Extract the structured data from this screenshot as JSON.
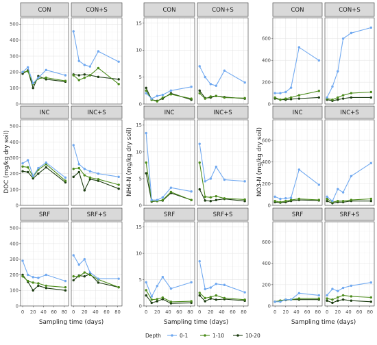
{
  "colors": {
    "d0_1": "#6fa8f0",
    "d1_10": "#4c8c1c",
    "d10_20": "#1d3d12"
  },
  "depth_keys": [
    "d0_1",
    "d1_10",
    "d10_20"
  ],
  "legend": {
    "title": "Depth",
    "items": [
      {
        "key": "d0_1",
        "label": "0-1"
      },
      {
        "key": "d1_10",
        "label": "1-10"
      },
      {
        "key": "d10_20",
        "label": "10-20"
      }
    ]
  },
  "chart_data": [
    {
      "type": "line",
      "ylabel": "DOC (mg/kg dry soil)",
      "xlabel": "Sampling time (days)",
      "ylim": [
        0,
        540
      ],
      "yticks": [
        0,
        100,
        200,
        300,
        400,
        500
      ],
      "xlim": [
        -4,
        88
      ],
      "xticks": [
        0,
        20,
        40,
        60,
        80
      ],
      "panels": [
        {
          "label": "CON",
          "x": [
            0,
            10,
            20,
            30,
            45,
            82
          ],
          "series": {
            "d0_1": [
              200,
              230,
              130,
              165,
              213,
              180
            ],
            "d1_10": [
              200,
              205,
              125,
              160,
              165,
              145
            ],
            "d10_20": [
              190,
              210,
              100,
              175,
              155,
              140
            ]
          }
        },
        {
          "label": "CON+S",
          "x": [
            0,
            10,
            20,
            30,
            45,
            82
          ],
          "series": {
            "d0_1": [
              455,
              270,
              245,
              235,
              330,
              265
            ],
            "d1_10": [
              180,
              150,
              165,
              180,
              225,
              125
            ],
            "d10_20": [
              185,
              180,
              185,
              180,
              170,
              155
            ]
          }
        },
        {
          "label": "INC",
          "x": [
            0,
            10,
            20,
            30,
            45,
            82
          ],
          "series": {
            "d0_1": [
              265,
              285,
              185,
              235,
              270,
              175
            ],
            "d1_10": [
              245,
              240,
              180,
              225,
              260,
              155
            ],
            "d10_20": [
              215,
              210,
              170,
              200,
              240,
              145
            ]
          }
        },
        {
          "label": "INC+S",
          "x": [
            0,
            10,
            20,
            30,
            45,
            82
          ],
          "series": {
            "d0_1": [
              380,
              260,
              230,
              215,
              200,
              180
            ],
            "d1_10": [
              230,
              235,
              190,
              175,
              165,
              130
            ],
            "d10_20": [
              180,
              210,
              95,
              165,
              155,
              105
            ]
          }
        },
        {
          "label": "SRF",
          "x": [
            0,
            10,
            20,
            30,
            45,
            82
          ],
          "series": {
            "d0_1": [
              290,
              200,
              185,
              180,
              200,
              160
            ],
            "d1_10": [
              190,
              160,
              150,
              145,
              130,
              120
            ],
            "d10_20": [
              200,
              155,
              100,
              130,
              115,
              100
            ]
          }
        },
        {
          "label": "SRF+S",
          "x": [
            0,
            10,
            20,
            30,
            45,
            82
          ],
          "series": {
            "d0_1": [
              325,
              265,
              300,
              215,
              175,
              175
            ],
            "d1_10": [
              190,
              190,
              215,
              200,
              170,
              120
            ],
            "d10_20": [
              165,
              195,
              190,
              205,
              150,
              120
            ]
          }
        }
      ]
    },
    {
      "type": "line",
      "ylabel": "NH4-N (mg/kg dry soil)",
      "xlabel": "Sampling time (days)",
      "ylim": [
        0,
        16
      ],
      "yticks": [
        0,
        5,
        10,
        15
      ],
      "xlim": [
        -4,
        88
      ],
      "xticks": [
        0,
        20,
        40,
        60,
        80
      ],
      "panels": [
        {
          "label": "CON",
          "x": [
            0,
            10,
            20,
            30,
            45,
            82
          ],
          "series": {
            "d0_1": [
              2.0,
              1.0,
              1.5,
              1.7,
              2.5,
              3.2
            ],
            "d1_10": [
              2.5,
              0.8,
              0.5,
              1.2,
              1.8,
              1.0
            ],
            "d10_20": [
              3.0,
              0.8,
              0.6,
              1.0,
              2.0,
              0.8
            ]
          }
        },
        {
          "label": "CON+S",
          "x": [
            0,
            10,
            20,
            30,
            45,
            82
          ],
          "series": {
            "d0_1": [
              7.0,
              5.0,
              3.7,
              3.4,
              6.2,
              4.0
            ],
            "d1_10": [
              2.0,
              1.0,
              1.4,
              1.5,
              1.2,
              1.1
            ],
            "d10_20": [
              2.5,
              1.1,
              1.2,
              1.5,
              1.3,
              1.0
            ]
          }
        },
        {
          "label": "INC",
          "x": [
            0,
            10,
            20,
            30,
            45,
            82
          ],
          "series": {
            "d0_1": [
              13.5,
              1.0,
              1.0,
              1.5,
              3.3,
              2.6
            ],
            "d1_10": [
              8.0,
              0.8,
              0.8,
              1.0,
              2.5,
              1.0
            ],
            "d10_20": [
              6.0,
              0.7,
              0.8,
              0.9,
              2.3,
              1.0
            ]
          }
        },
        {
          "label": "INC+S",
          "x": [
            0,
            10,
            20,
            30,
            45,
            82
          ],
          "series": {
            "d0_1": [
              11.5,
              4.5,
              5.0,
              7.2,
              4.8,
              4.5
            ],
            "d1_10": [
              8.0,
              1.6,
              1.5,
              1.7,
              1.3,
              1.1
            ],
            "d10_20": [
              3.0,
              0.9,
              0.8,
              1.0,
              1.2,
              0.8
            ]
          }
        },
        {
          "label": "SRF",
          "x": [
            0,
            10,
            20,
            30,
            45,
            82
          ],
          "series": {
            "d0_1": [
              4.5,
              1.8,
              3.8,
              5.5,
              3.3,
              4.5
            ],
            "d1_10": [
              3.0,
              1.2,
              1.3,
              1.6,
              0.8,
              0.9
            ],
            "d10_20": [
              2.0,
              0.6,
              0.9,
              1.3,
              0.5,
              0.6
            ]
          }
        },
        {
          "label": "SRF+S",
          "x": [
            0,
            10,
            20,
            30,
            45,
            82
          ],
          "series": {
            "d0_1": [
              8.5,
              3.2,
              3.5,
              4.2,
              4.0,
              2.6
            ],
            "d1_10": [
              2.5,
              1.5,
              1.7,
              2.0,
              1.5,
              1.2
            ],
            "d10_20": [
              2.0,
              0.9,
              1.4,
              1.2,
              1.3,
              1.0
            ]
          }
        }
      ]
    },
    {
      "type": "line",
      "ylabel": "NO3-N (mg/kg dry soil)",
      "xlabel": "Sampling time (days)",
      "ylim": [
        0,
        790
      ],
      "yticks": [
        0,
        200,
        400,
        600
      ],
      "xlim": [
        -4,
        88
      ],
      "xticks": [
        0,
        20,
        40,
        60,
        80
      ],
      "panels": [
        {
          "label": "CON",
          "x": [
            0,
            10,
            20,
            30,
            45,
            82
          ],
          "series": {
            "d0_1": [
              100,
              100,
              110,
              150,
              520,
              400
            ],
            "d1_10": [
              60,
              40,
              50,
              60,
              80,
              120
            ],
            "d10_20": [
              50,
              40,
              40,
              45,
              50,
              60
            ]
          }
        },
        {
          "label": "CON+S",
          "x": [
            0,
            10,
            20,
            30,
            45,
            82
          ],
          "series": {
            "d0_1": [
              60,
              160,
              300,
              600,
              650,
              700
            ],
            "d1_10": [
              50,
              40,
              60,
              80,
              100,
              110
            ],
            "d10_20": [
              40,
              30,
              40,
              50,
              60,
              60
            ]
          }
        },
        {
          "label": "INC",
          "x": [
            0,
            10,
            20,
            30,
            45,
            82
          ],
          "series": {
            "d0_1": [
              80,
              60,
              65,
              70,
              330,
              190
            ],
            "d1_10": [
              40,
              30,
              40,
              50,
              60,
              50
            ],
            "d10_20": [
              30,
              25,
              30,
              40,
              50,
              45
            ]
          }
        },
        {
          "label": "INC+S",
          "x": [
            0,
            10,
            20,
            30,
            45,
            82
          ],
          "series": {
            "d0_1": [
              80,
              40,
              150,
              120,
              270,
              390
            ],
            "d1_10": [
              60,
              30,
              40,
              40,
              50,
              60
            ],
            "d10_20": [
              40,
              20,
              30,
              30,
              40,
              40
            ]
          }
        },
        {
          "label": "SRF",
          "x": [
            0,
            10,
            20,
            30,
            45,
            82
          ],
          "series": {
            "d0_1": [
              40,
              40,
              60,
              60,
              120,
              100
            ],
            "d1_10": [
              40,
              50,
              60,
              60,
              70,
              70
            ],
            "d10_20": [
              40,
              50,
              55,
              60,
              60,
              60
            ]
          }
        },
        {
          "label": "SRF+S",
          "x": [
            0,
            10,
            20,
            30,
            45,
            82
          ],
          "series": {
            "d0_1": [
              100,
              160,
              140,
              170,
              190,
              220
            ],
            "d1_10": [
              70,
              60,
              80,
              100,
              90,
              80
            ],
            "d10_20": [
              50,
              30,
              50,
              60,
              50,
              40
            ]
          }
        }
      ]
    }
  ]
}
